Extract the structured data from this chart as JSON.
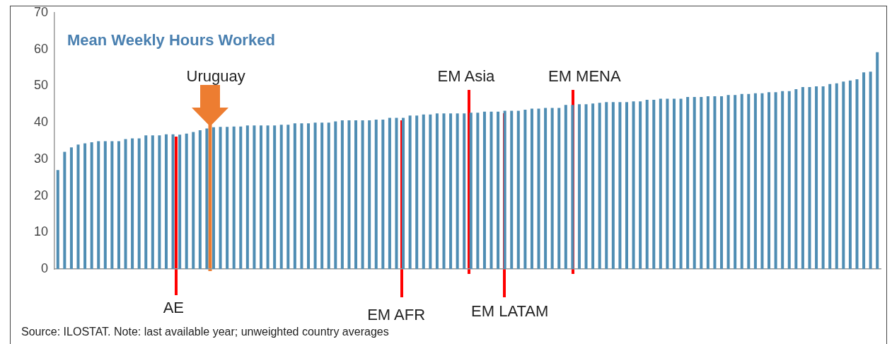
{
  "chart_data": {
    "type": "bar",
    "title": "Mean Weekly Hours Worked",
    "categories": [
      null,
      null,
      null,
      null,
      null,
      null,
      null,
      null,
      null,
      null,
      null,
      null,
      null,
      null,
      null,
      null,
      null,
      null,
      null,
      null,
      null,
      null,
      null,
      null,
      null,
      null,
      null,
      null,
      null,
      null,
      null,
      null,
      null,
      null,
      null,
      null,
      null,
      null,
      null,
      null,
      null,
      null,
      null,
      null,
      null,
      null,
      null,
      null,
      null,
      null,
      null,
      null,
      null,
      null,
      null,
      null,
      null,
      null,
      null,
      null,
      null,
      null,
      null,
      null,
      null,
      null,
      null,
      null,
      null,
      null,
      null,
      null,
      null,
      null,
      null,
      null,
      null,
      null,
      null,
      null,
      null,
      null,
      null,
      null,
      null,
      null,
      null,
      null,
      null,
      null,
      null,
      null,
      null,
      null,
      null,
      null,
      null,
      null,
      null,
      null,
      null,
      null,
      null,
      null,
      null,
      null,
      null,
      null,
      null,
      null,
      null,
      null,
      null,
      null,
      null,
      null,
      null,
      null,
      null,
      null,
      null,
      null
    ],
    "values": [
      27,
      32,
      33.2,
      34,
      34.3,
      34.6,
      34.9,
      34.9,
      34.9,
      34.9,
      35.5,
      35.7,
      35.7,
      36.5,
      36.5,
      36.5,
      36.8,
      36.8,
      36.7,
      37,
      37.4,
      37.9,
      38.4,
      38.7,
      38.8,
      38.8,
      38.9,
      38.9,
      39.2,
      39.2,
      39.2,
      39.2,
      39.2,
      39.4,
      39.4,
      39.8,
      39.8,
      39.8,
      40,
      40,
      40,
      40.3,
      40.6,
      40.6,
      40.6,
      40.6,
      40.6,
      40.8,
      40.8,
      41.3,
      41.3,
      41.3,
      41.9,
      41.9,
      42.2,
      42.2,
      42.5,
      42.5,
      42.5,
      42.5,
      42.5,
      42.7,
      42.7,
      43,
      43,
      43,
      43.2,
      43.2,
      43.2,
      43.5,
      43.8,
      43.8,
      44,
      44,
      44,
      44.8,
      44.8,
      45,
      45,
      45.2,
      45.4,
      45.6,
      45.6,
      45.6,
      45.6,
      45.8,
      45.8,
      46.2,
      46.2,
      46.5,
      46.5,
      46.5,
      46.5,
      47,
      47,
      47,
      47.2,
      47.2,
      47.2,
      47.5,
      47.5,
      47.8,
      47.8,
      48,
      48,
      48.3,
      48.3,
      48.6,
      48.6,
      49.1,
      49.7,
      49.7,
      49.9,
      49.9,
      50.5,
      50.7,
      51.2,
      51.5,
      51.8,
      53.7,
      53.9,
      59.2
    ],
    "color": "#4f8db3",
    "ylim": [
      0,
      70
    ],
    "yticks": [
      0,
      10,
      20,
      30,
      40,
      50,
      60,
      70
    ],
    "grid": false,
    "legend": false,
    "tick_labels": "y",
    "annotations": [
      "Uruguay",
      "AE",
      "EM AFR",
      "EM Asia",
      "EM LATAM",
      "EM MENA",
      "Source: ILOSTAT. Note: last available year; unweighted country averages"
    ]
  }
}
